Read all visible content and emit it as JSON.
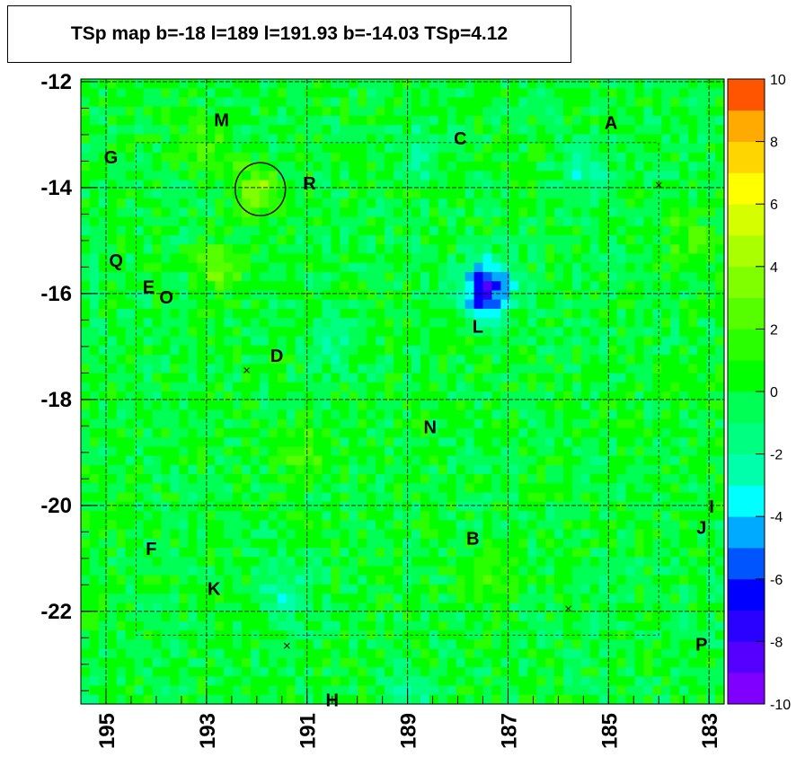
{
  "title": "TSp map b=-18 l=189 l=191.93 b=-14.03 TSp=4.12",
  "chart_data": {
    "type": "heatmap",
    "title": "TSp map b=-18 l=189 l=191.93 b=-14.03 TSp=4.12",
    "xlabel": "",
    "ylabel": "",
    "xlim": [
      195.5,
      182.7
    ],
    "ylim": [
      -23.75,
      -11.95
    ],
    "x_ticks": [
      195,
      193,
      191,
      189,
      187,
      185,
      183
    ],
    "y_ticks": [
      -12,
      -14,
      -16,
      -18,
      -20,
      -22
    ],
    "z_range": [
      -10,
      10
    ],
    "colorbar_ticks": [
      10,
      8,
      6,
      4,
      2,
      0,
      -2,
      -4,
      -6,
      -8,
      -10
    ],
    "background_value": 0,
    "features": [
      {
        "l": 191.95,
        "b": -14.05,
        "value": 3.5
      },
      {
        "l": 192.7,
        "b": -15.5,
        "value": 2.5
      },
      {
        "l": 193.1,
        "b": -13.2,
        "value": 2.0
      },
      {
        "l": 187.4,
        "b": -15.8,
        "value": -5
      },
      {
        "l": 187.5,
        "b": -16.1,
        "value": -3
      },
      {
        "l": 188.7,
        "b": -13.3,
        "value": -2
      },
      {
        "l": 185.5,
        "b": -13.8,
        "value": -2
      },
      {
        "l": 190.5,
        "b": -16.9,
        "value": -2
      },
      {
        "l": 191.5,
        "b": -21.7,
        "value": -2
      },
      {
        "l": 187.2,
        "b": -21.3,
        "value": 2
      },
      {
        "l": 183.4,
        "b": -15.0,
        "value": 2
      },
      {
        "l": 191.2,
        "b": -19.0,
        "value": 2
      },
      {
        "l": 189.0,
        "b": -23.5,
        "value": -2
      }
    ],
    "circle": {
      "l": 191.93,
      "b": -14.03,
      "radius_deg": 0.5
    },
    "markers": [
      {
        "l": 192.2,
        "b": -17.45
      },
      {
        "l": 184.0,
        "b": -13.95
      },
      {
        "l": 191.4,
        "b": -22.65
      },
      {
        "l": 185.8,
        "b": -21.95
      }
    ],
    "annotations": [
      {
        "text": "M",
        "l": 192.7,
        "b": -12.75
      },
      {
        "text": "C",
        "l": 187.95,
        "b": -13.1
      },
      {
        "text": "A",
        "l": 184.95,
        "b": -12.8
      },
      {
        "text": "G",
        "l": 194.9,
        "b": -13.45
      },
      {
        "text": "R",
        "l": 190.95,
        "b": -13.95
      },
      {
        "text": "Q",
        "l": 194.8,
        "b": -15.4
      },
      {
        "text": "E",
        "l": 194.15,
        "b": -15.9
      },
      {
        "text": "O",
        "l": 193.8,
        "b": -16.1
      },
      {
        "text": "L",
        "l": 187.6,
        "b": -16.65
      },
      {
        "text": "D",
        "l": 191.6,
        "b": -17.2
      },
      {
        "text": "N",
        "l": 188.55,
        "b": -18.55
      },
      {
        "text": "I",
        "l": 182.95,
        "b": -20.05
      },
      {
        "text": "J",
        "l": 183.15,
        "b": -20.45
      },
      {
        "text": "F",
        "l": 194.1,
        "b": -20.85
      },
      {
        "text": "B",
        "l": 187.7,
        "b": -20.65
      },
      {
        "text": "K",
        "l": 192.85,
        "b": -21.6
      },
      {
        "text": "P",
        "l": 183.15,
        "b": -22.65
      },
      {
        "text": "H",
        "l": 190.5,
        "b": -23.7
      }
    ]
  }
}
